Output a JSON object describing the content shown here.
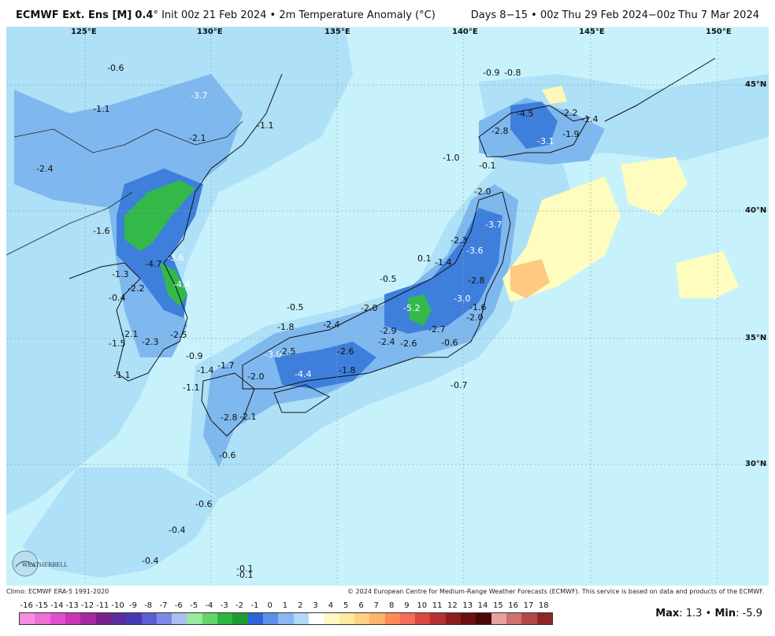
{
  "header": {
    "model": "ECMWF Ext. Ens [M]",
    "res": "0.4",
    "res_suffix": "°",
    "init": "Init 00z 21 Feb 2024",
    "sep": "•",
    "field": "2m Temperature Anomaly (°C)",
    "range": "Days 8−15 • 00z Thu 29 Feb 2024−00z Thu 7 Mar 2024"
  },
  "axes": {
    "lon_labels": [
      "125°E",
      "130°E",
      "135°E",
      "140°E",
      "145°E",
      "150°E"
    ],
    "lat_labels": [
      "45°N",
      "40°N",
      "35°N",
      "30°N"
    ]
  },
  "anomaly_labels": [
    "-0.6",
    "-1.1",
    "-3.7",
    "-2.1",
    "-1.1",
    "-2.4",
    "-1.6",
    "-4.7",
    "-3.6",
    "-4.4",
    "-1.3",
    "-2.2",
    "-0.4",
    "-2.1",
    "-1.5",
    "-2.3",
    "-2.5",
    "-1.1",
    "-0.9",
    "-1.4",
    "-1.7",
    "-1.1",
    "-2.0",
    "-2.8",
    "-2.1",
    "-0.6",
    "-0.6",
    "-0.4",
    "-0.4",
    "-0.1",
    "-0.1",
    "-0.5",
    "-1.8",
    "-2.4",
    "-3.0",
    "-2.5",
    "-4.4",
    "-2.6",
    "-1.8",
    "-2.0",
    "-2.9",
    "-2.4",
    "-2.6",
    "-5.2",
    "-2.7",
    "-0.6",
    "-0.7",
    "-0.5",
    "0.1",
    "-1.4",
    "-2.3",
    "-3.6",
    "-2.8",
    "-3.0",
    "-1.6",
    "-2.0",
    "-3.7",
    "-2.0",
    "-1.0",
    "-0.1",
    "-0.9",
    "-0.8",
    "-4.5",
    "-2.8",
    "-3.1",
    "-1.9",
    "-2.2",
    "-1.4"
  ],
  "footer": {
    "climo": "Climo: ECMWF ERA-5 1991-2020",
    "copyright": "© 2024 European Centre for Medium-Range Weather Forecasts (ECMWF). This service is based on data and products of the ECMWF."
  },
  "colorbar": {
    "ticks": [
      "-16",
      "-15",
      "-14",
      "-13",
      "-12",
      "-11",
      "-10",
      "-9",
      "-8",
      "-7",
      "-6",
      "-5",
      "-4",
      "-3",
      "-2",
      "-1",
      "0",
      "1",
      "2",
      "3",
      "4",
      "5",
      "6",
      "7",
      "8",
      "9",
      "10",
      "11",
      "12",
      "13",
      "14",
      "15",
      "16",
      "17",
      "18"
    ],
    "colors": [
      "#f58ee0",
      "#ee6fd6",
      "#e24fcc",
      "#c936b7",
      "#a6289e",
      "#7a1f8a",
      "#5a2c9c",
      "#4838b4",
      "#5b5fd2",
      "#7c8ae6",
      "#a8c0f0",
      "#9be8a0",
      "#66d36b",
      "#2fb63c",
      "#1f9a2f",
      "#2d62d8",
      "#5b8fe8",
      "#8ab6f2",
      "#b2d8f8",
      "#ffffff",
      "#fff8c0",
      "#ffe9a0",
      "#ffd085",
      "#ffb36a",
      "#ff8a55",
      "#f26d5a",
      "#d9473f",
      "#b53030",
      "#8a1f1f",
      "#6a1010",
      "#4a0808",
      "#e8a0a0",
      "#d07070",
      "#b44848",
      "#8f2626"
    ]
  },
  "stats": {
    "max_label": "Max",
    "max": "1.3",
    "dot": "•",
    "min_label": "Min",
    "min": "-5.9"
  },
  "logo": {
    "text": "WEATHERBELL"
  }
}
